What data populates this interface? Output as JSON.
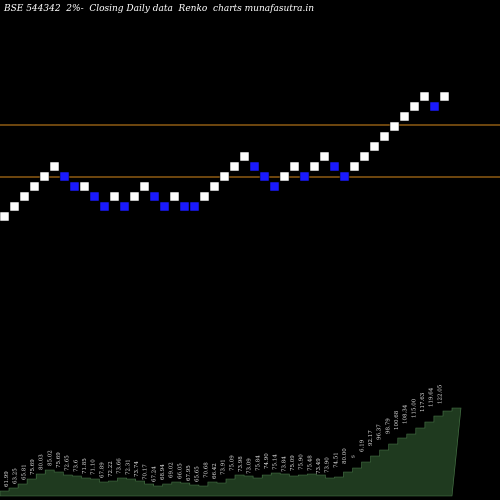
{
  "chart_data": {
    "type": "renko",
    "title": "BSE 544342  2%-  Closing Daily data  Renko  charts munafasutra.in",
    "reference_lines": [
      {
        "color": "#d98a1c",
        "level": "upper"
      },
      {
        "color": "#d98a1c",
        "level": "lower"
      }
    ],
    "colors": {
      "up": "#ffffff",
      "down": "#1a1aff",
      "volume_fill": "#1f3a1f",
      "volume_line": "#4a7a4a",
      "label": "#dddddd"
    },
    "bricks": [
      {
        "dir": "up",
        "level": 0
      },
      {
        "dir": "up",
        "level": 1
      },
      {
        "dir": "up",
        "level": 2
      },
      {
        "dir": "up",
        "level": 3
      },
      {
        "dir": "up",
        "level": 4
      },
      {
        "dir": "up",
        "level": 5
      },
      {
        "dir": "down",
        "level": 4
      },
      {
        "dir": "down",
        "level": 3
      },
      {
        "dir": "up",
        "level": 3
      },
      {
        "dir": "down",
        "level": 2
      },
      {
        "dir": "down",
        "level": 1
      },
      {
        "dir": "up",
        "level": 2
      },
      {
        "dir": "down",
        "level": 1
      },
      {
        "dir": "up",
        "level": 2
      },
      {
        "dir": "up",
        "level": 3
      },
      {
        "dir": "down",
        "level": 2
      },
      {
        "dir": "down",
        "level": 1
      },
      {
        "dir": "up",
        "level": 2
      },
      {
        "dir": "down",
        "level": 1
      },
      {
        "dir": "down",
        "level": 1
      },
      {
        "dir": "up",
        "level": 2
      },
      {
        "dir": "up",
        "level": 3
      },
      {
        "dir": "up",
        "level": 4
      },
      {
        "dir": "up",
        "level": 5
      },
      {
        "dir": "up",
        "level": 6
      },
      {
        "dir": "down",
        "level": 5
      },
      {
        "dir": "down",
        "level": 4
      },
      {
        "dir": "down",
        "level": 3
      },
      {
        "dir": "up",
        "level": 4
      },
      {
        "dir": "up",
        "level": 5
      },
      {
        "dir": "down",
        "level": 4
      },
      {
        "dir": "up",
        "level": 5
      },
      {
        "dir": "up",
        "level": 6
      },
      {
        "dir": "down",
        "level": 5
      },
      {
        "dir": "down",
        "level": 4
      },
      {
        "dir": "up",
        "level": 5
      },
      {
        "dir": "up",
        "level": 6
      },
      {
        "dir": "up",
        "level": 7
      },
      {
        "dir": "up",
        "level": 8
      },
      {
        "dir": "up",
        "level": 9
      },
      {
        "dir": "up",
        "level": 10
      },
      {
        "dir": "up",
        "level": 11
      },
      {
        "dir": "up",
        "level": 12
      },
      {
        "dir": "down",
        "level": 11
      },
      {
        "dir": "up",
        "level": 12
      }
    ],
    "volume_labels": [
      "61.99",
      "63.25",
      "65.81",
      "75.69",
      "80.03",
      "85.02",
      "75.69",
      "72.65",
      "73.6",
      "71.85",
      "71.10",
      "67.89",
      "72.22",
      "73.66",
      "72.31",
      "73.74",
      "70.17",
      "67.24",
      "68.94",
      "69.02",
      "66.05",
      "67.95",
      "65.65",
      "70.68",
      "66.42",
      "73.91",
      "75.09",
      "73.98",
      "73.09",
      "75.84",
      "74.90",
      "75.14",
      "73.84",
      "75.09",
      "75.90",
      "75.48",
      "73.49",
      "73.90",
      "74.51",
      "80.00",
      "s",
      "6.19",
      "92.17",
      "96.37",
      "98.79",
      "100.68",
      "108.34",
      "115.00",
      "117.63",
      "119.64",
      "122.05"
    ],
    "volume_profile": [
      0.05,
      0.08,
      0.12,
      0.17,
      0.22,
      0.26,
      0.24,
      0.21,
      0.2,
      0.18,
      0.17,
      0.14,
      0.15,
      0.18,
      0.17,
      0.15,
      0.12,
      0.1,
      0.12,
      0.14,
      0.13,
      0.11,
      0.1,
      0.14,
      0.13,
      0.17,
      0.21,
      0.2,
      0.18,
      0.21,
      0.23,
      0.22,
      0.2,
      0.21,
      0.22,
      0.21,
      0.18,
      0.19,
      0.24,
      0.28,
      0.34,
      0.4,
      0.46,
      0.52,
      0.58,
      0.62,
      0.68,
      0.74,
      0.8,
      0.85,
      0.88
    ]
  }
}
